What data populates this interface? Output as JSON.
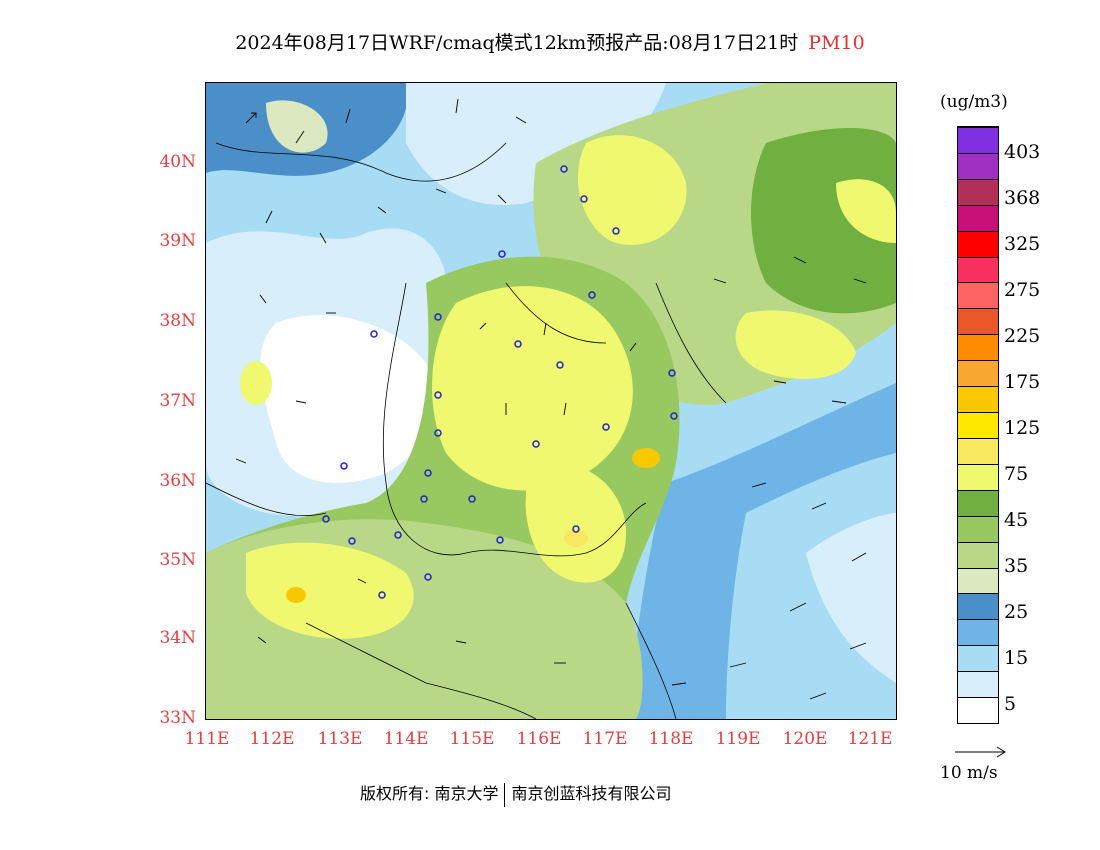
{
  "title": {
    "main": "2024年08月17日WRF/cmaq模式12km预报产品:08月17日21时",
    "species": "PM10"
  },
  "map": {
    "lat_labels": [
      "40N",
      "39N",
      "38N",
      "37N",
      "36N",
      "35N",
      "34N",
      "33N"
    ],
    "lon_labels": [
      "111E",
      "112E",
      "113E",
      "114E",
      "115E",
      "116E",
      "117E",
      "118E",
      "119E",
      "120E",
      "121E"
    ]
  },
  "legend": {
    "unit": "(ug/m3)",
    "labels": [
      "403",
      "368",
      "325",
      "275",
      "225",
      "175",
      "125",
      "75",
      "45",
      "35",
      "25",
      "15",
      "5"
    ],
    "colors": [
      "#ffffff",
      "#d8eefa",
      "#a8dcf5",
      "#6fb4e6",
      "#4a8fc8",
      "#dce8c0",
      "#b8d888",
      "#98c860",
      "#70b040",
      "#f0f870",
      "#f8e860",
      "#ffe800",
      "#f8c800",
      "#f8a830",
      "#ff8c00",
      "#e85828",
      "#ff6464",
      "#f83060",
      "#ff0000",
      "#c81078",
      "#b03058",
      "#a030c0",
      "#8030e0"
    ],
    "wind_label": "10 m/s"
  },
  "footer": {
    "left": "版权所有: 南京大学",
    "right": "南京创蓝科技有限公司"
  }
}
